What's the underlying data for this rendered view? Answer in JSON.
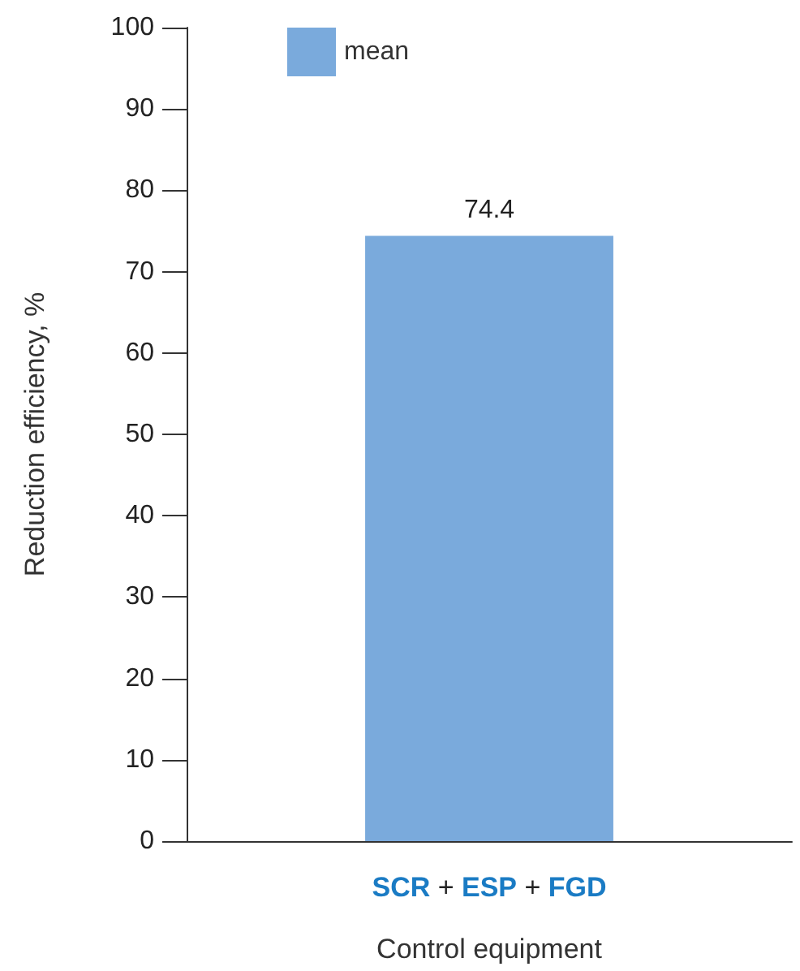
{
  "chart_data": {
    "type": "bar",
    "xlabel": "Control equipment",
    "ylabel": "Reduction efficiency, %",
    "categories": [
      "SCR + ESP + FGD"
    ],
    "series": [
      {
        "name": "mean",
        "color": "#7aaadc",
        "values": [
          74.4
        ]
      }
    ],
    "ylim": [
      0,
      100
    ],
    "yticks": [
      0,
      10,
      20,
      30,
      40,
      50,
      60,
      70,
      80,
      90,
      100
    ],
    "data_labels": true,
    "grid": false,
    "legend": "top left"
  }
}
